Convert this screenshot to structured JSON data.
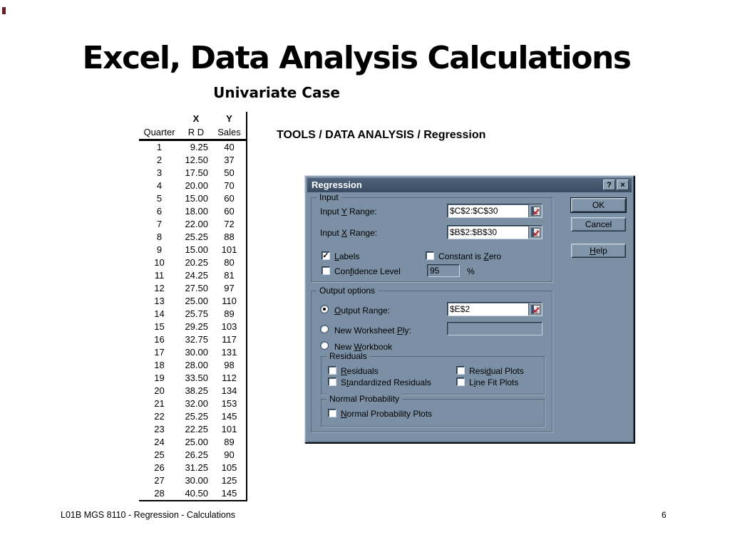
{
  "slide": {
    "title": "Excel, Data Analysis Calculations",
    "subtitle": "Univariate Case",
    "menu_path": "TOOLS / DATA ANALYSIS / Regression",
    "footer_text": "L01B MGS 8110 - Regression - Calculations",
    "page_number": "6"
  },
  "table": {
    "group_headers": {
      "x": "X",
      "y": "Y"
    },
    "headers": [
      "Quarter",
      "R D",
      "Sales"
    ],
    "rows": [
      [
        "1",
        "9.25",
        "40"
      ],
      [
        "2",
        "12.50",
        "37"
      ],
      [
        "3",
        "17.50",
        "50"
      ],
      [
        "4",
        "20.00",
        "70"
      ],
      [
        "5",
        "15.00",
        "60"
      ],
      [
        "6",
        "18.00",
        "60"
      ],
      [
        "7",
        "22.00",
        "72"
      ],
      [
        "8",
        "25.25",
        "88"
      ],
      [
        "9",
        "15.00",
        "101"
      ],
      [
        "10",
        "20.25",
        "80"
      ],
      [
        "11",
        "24.25",
        "81"
      ],
      [
        "12",
        "27.50",
        "97"
      ],
      [
        "13",
        "25.00",
        "110"
      ],
      [
        "14",
        "25.75",
        "89"
      ],
      [
        "15",
        "29.25",
        "103"
      ],
      [
        "16",
        "32.75",
        "117"
      ],
      [
        "17",
        "30.00",
        "131"
      ],
      [
        "18",
        "28.00",
        "98"
      ],
      [
        "19",
        "33.50",
        "112"
      ],
      [
        "20",
        "38.25",
        "134"
      ],
      [
        "21",
        "32.00",
        "153"
      ],
      [
        "22",
        "25.25",
        "145"
      ],
      [
        "23",
        "22.25",
        "101"
      ],
      [
        "24",
        "25.00",
        "89"
      ],
      [
        "25",
        "26.25",
        "90"
      ],
      [
        "26",
        "31.25",
        "105"
      ],
      [
        "27",
        "30.00",
        "125"
      ],
      [
        "28",
        "40.50",
        "145"
      ]
    ]
  },
  "dialog": {
    "title": "Regression",
    "titlebar": {
      "help_glyph": "?",
      "close_glyph": "×"
    },
    "buttons": {
      "ok": "OK",
      "cancel": "Cancel",
      "help": {
        "pre": "",
        "accel": "H",
        "post": "elp"
      }
    },
    "input_group": {
      "legend": "Input",
      "y_label": {
        "pre": "Input ",
        "accel": "Y",
        "post": " Range:"
      },
      "y_value": "$C$2:$C$30",
      "x_label": {
        "pre": "Input ",
        "accel": "X",
        "post": " Range:"
      },
      "x_value": "$B$2:$B$30",
      "labels": {
        "pre": "",
        "accel": "L",
        "post": "abels",
        "checked": true,
        "check_glyph": "✓"
      },
      "constant_zero": {
        "pre": "Constant is ",
        "accel": "Z",
        "post": "ero"
      },
      "confidence": {
        "pre": "Con",
        "accel": "f",
        "post": "idence Level"
      },
      "confidence_value": "95",
      "percent": "%"
    },
    "output_group": {
      "legend": "Output options",
      "selected_option": "output_range",
      "output_range": {
        "pre": "",
        "accel": "O",
        "post": "utput Range:"
      },
      "output_range_value": "$E$2",
      "new_worksheet": {
        "pre": "New Worksheet ",
        "accel": "P",
        "post": "ly:"
      },
      "new_worksheet_value": "",
      "new_workbook": {
        "pre": "New ",
        "accel": "W",
        "post": "orkbook"
      }
    },
    "residuals_group": {
      "legend": "Residuals",
      "residuals": {
        "pre": "",
        "accel": "R",
        "post": "esiduals"
      },
      "standardized": {
        "pre": "S",
        "accel": "t",
        "post": "andardized Residuals"
      },
      "residual_plots": {
        "pre": "Resi",
        "accel": "d",
        "post": "ual Plots"
      },
      "line_fit_plots": {
        "pre": "L",
        "accel": "i",
        "post": "ne Fit Plots"
      }
    },
    "normal_group": {
      "legend": "Normal Probability",
      "plots": {
        "pre": "",
        "accel": "N",
        "post": "ormal Probability Plots"
      }
    }
  },
  "colors": {
    "dialog_bg": "#7b90a5",
    "titlebar_top": "#4e6379",
    "titlebar_bottom": "#384c61",
    "field_bg": "#ffffff",
    "picker_red": "#c1222e",
    "corner_mark": "#6b1d25"
  }
}
